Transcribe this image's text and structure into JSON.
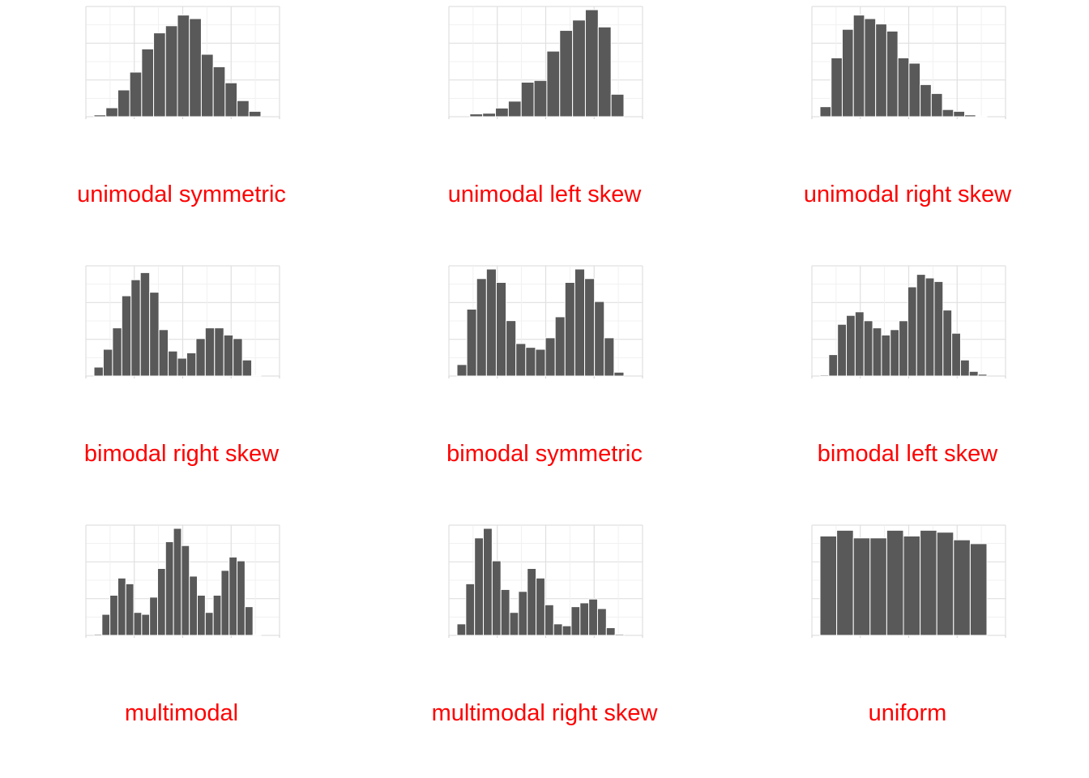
{
  "colors": {
    "bar": "#595959",
    "bar_border": "#ffffff",
    "caption": "#ff0000",
    "grid": "#e0e0e0"
  },
  "chart_data": [
    {
      "type": "bar",
      "title": "unimodal symmetric",
      "grid": true,
      "ylim": [
        0,
        30
      ],
      "values": [
        0.5,
        2.5,
        7.5,
        12.5,
        19,
        23.5,
        25.5,
        28.5,
        27.5,
        17.5,
        14,
        9.5,
        4.5,
        1.5
      ]
    },
    {
      "type": "bar",
      "title": "unimodal left skew",
      "grid": true,
      "ylim": [
        0,
        31
      ],
      "values": [
        0,
        0.8,
        1,
        2.5,
        4.5,
        10,
        10.5,
        19,
        25,
        28,
        31,
        26,
        6.5
      ]
    },
    {
      "type": "bar",
      "title": "unimodal right skew",
      "grid": true,
      "ylim": [
        0,
        30
      ],
      "values": [
        2.8,
        16.5,
        24.5,
        28.5,
        27.5,
        26,
        24,
        16.5,
        15,
        9,
        6.5,
        2,
        1.5,
        0.5,
        0.2
      ]
    },
    {
      "type": "bar",
      "title": "bimodal right skew",
      "grid": true,
      "ylim": [
        0,
        30
      ],
      "values": [
        2.5,
        7.5,
        13.5,
        22.5,
        27,
        29,
        23.5,
        13,
        7,
        5,
        6.5,
        10.5,
        13.5,
        13.5,
        11.5,
        10.5,
        4.5,
        0.2
      ]
    },
    {
      "type": "bar",
      "title": "bimodal symmetric",
      "grid": true,
      "ylim": [
        0,
        28
      ],
      "values": [
        3,
        17.5,
        25.5,
        28,
        24.5,
        14.5,
        8.5,
        7.5,
        7,
        10,
        15.5,
        24.5,
        28,
        25.5,
        19.5,
        10,
        1
      ]
    },
    {
      "type": "bar",
      "title": "bimodal left skew",
      "grid": true,
      "ylim": [
        0,
        30
      ],
      "values": [
        0.3,
        6,
        14.5,
        17,
        18,
        15.5,
        13.5,
        11.5,
        13,
        15.5,
        25,
        28.5,
        27.5,
        26.5,
        18.5,
        12,
        4.5,
        1.3,
        0.5
      ]
    },
    {
      "type": "bar",
      "title": "multimodal",
      "grid": true,
      "ylim": [
        0,
        28
      ],
      "values": [
        0.3,
        5.5,
        10.5,
        15,
        13.5,
        6,
        5.5,
        10,
        17.5,
        24.5,
        28,
        23.5,
        15.5,
        10.5,
        6,
        10.5,
        17,
        20.5,
        19.5,
        7.5,
        0.2
      ]
    },
    {
      "type": "bar",
      "title": "multimodal right skew",
      "grid": true,
      "ylim": [
        0,
        28
      ],
      "values": [
        3,
        13.5,
        25.5,
        28,
        19.5,
        12,
        6,
        11.5,
        17.5,
        15,
        8,
        3,
        2.5,
        7.5,
        8.5,
        9.5,
        7,
        2,
        0.3
      ]
    },
    {
      "type": "bar",
      "title": "uniform",
      "grid": true,
      "ylim": [
        0,
        28
      ],
      "values": [
        26,
        27.5,
        25.5,
        25.5,
        27.5,
        26,
        27.5,
        27,
        25,
        24
      ]
    }
  ]
}
